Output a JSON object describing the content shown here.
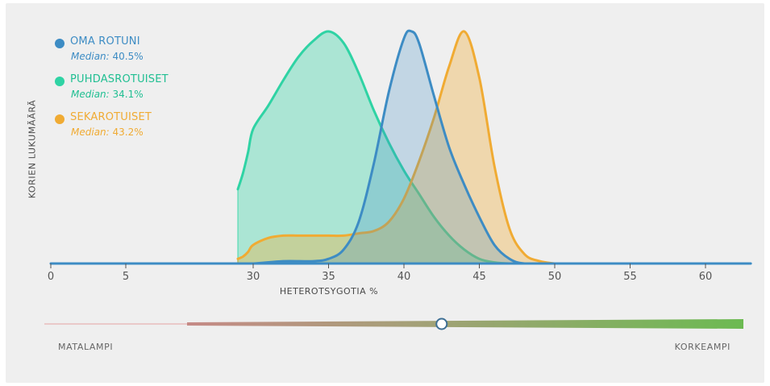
{
  "chart_data": {
    "type": "area",
    "ylabel": "KORIEN LUKUMÄÄRÄ",
    "xlabel": "HETEROTSYGOTIA %",
    "x_ticks": [
      "0",
      "5",
      "30",
      "35",
      "40",
      "45",
      "50",
      "55",
      "60"
    ],
    "x_tick_values": [
      0,
      5,
      30,
      35,
      40,
      45,
      50,
      55,
      60
    ],
    "x_axis_note": "axis is broken between 5 and 30",
    "ylim": [
      0,
      1
    ],
    "grid": false,
    "legend_position": "top-left",
    "series": [
      {
        "name": "PUHDASROTUISET",
        "median_label": "Median:",
        "median_value": "34.1%",
        "color": "#2fd3a4",
        "x": [
          27,
          28,
          29,
          30,
          31,
          32,
          33,
          34,
          35,
          36,
          37,
          38,
          39,
          40,
          41,
          42,
          43,
          44,
          45,
          46,
          47,
          48,
          49
        ],
        "y": [
          0.32,
          0.39,
          0.48,
          0.58,
          0.68,
          0.79,
          0.89,
          0.96,
          1.0,
          0.95,
          0.82,
          0.66,
          0.52,
          0.4,
          0.3,
          0.2,
          0.12,
          0.06,
          0.02,
          0.005,
          0.0,
          0.0,
          0.0
        ]
      },
      {
        "name": "SEKAROTUISET",
        "median_label": "Median:",
        "median_value": "43.2%",
        "color": "#f0ab33",
        "x": [
          27,
          28,
          29,
          30,
          31,
          32,
          33,
          34,
          35,
          36,
          37,
          38,
          39,
          40,
          41,
          42,
          43,
          44,
          45,
          46,
          47,
          48,
          49,
          50
        ],
        "y": [
          0.02,
          0.03,
          0.05,
          0.08,
          0.11,
          0.12,
          0.12,
          0.12,
          0.12,
          0.12,
          0.13,
          0.14,
          0.18,
          0.28,
          0.44,
          0.63,
          0.85,
          1.0,
          0.8,
          0.42,
          0.15,
          0.04,
          0.01,
          0.0
        ]
      },
      {
        "name": "OMA ROTUNI",
        "median_label": "Median:",
        "median_value": "40.5%",
        "color": "#3d8cc4",
        "x": [
          0,
          5,
          25,
          30,
          32,
          34,
          35,
          36,
          37,
          38,
          39,
          40,
          40.5,
          41,
          42,
          43,
          44,
          45,
          46,
          47,
          48,
          50,
          55,
          63
        ],
        "y": [
          0.0,
          0.0,
          0.0,
          0.0,
          0.01,
          0.01,
          0.02,
          0.06,
          0.18,
          0.43,
          0.74,
          0.97,
          1.0,
          0.95,
          0.72,
          0.5,
          0.34,
          0.2,
          0.08,
          0.02,
          0.0,
          0.0,
          0.0,
          0.0
        ]
      }
    ],
    "scale_bar": {
      "low_label": "MATALAMPI",
      "high_label": "KORKEAMPI",
      "marker_value": 42.5
    }
  }
}
